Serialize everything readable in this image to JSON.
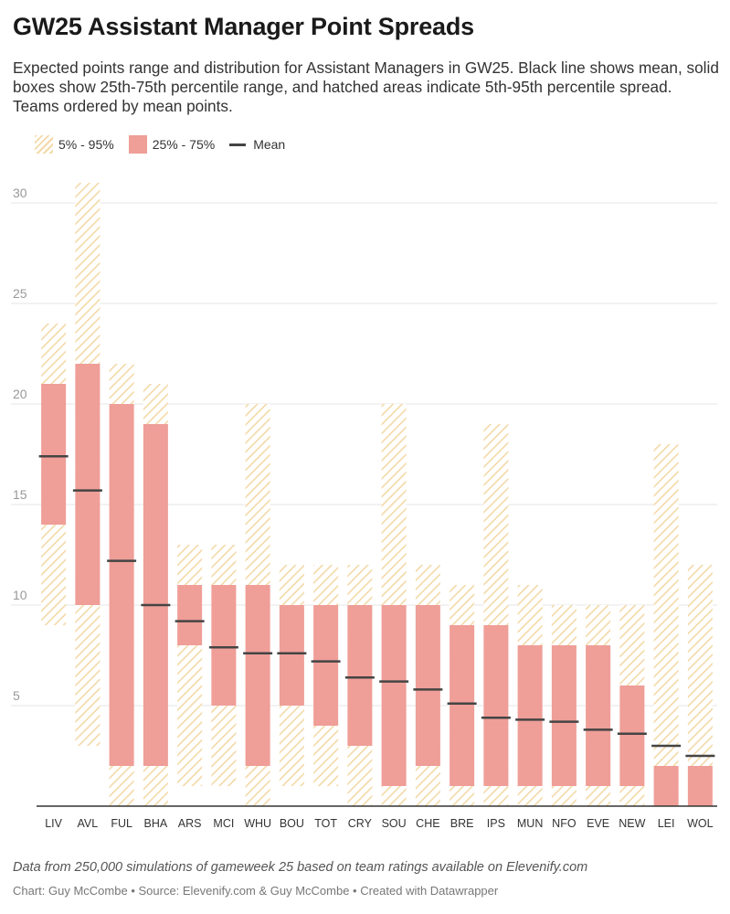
{
  "chart_data": {
    "type": "bar",
    "title": "GW25 Assistant Manager Point Spreads",
    "subtitle": "Expected points range and distribution for Assistant Managers in GW25. Black line shows mean, solid boxes show 25th-75th percentile range, and hatched areas indicate 5th-95th percentile spread. Teams ordered by mean points.",
    "legend": [
      {
        "label": "5% - 95%",
        "style": "hatched"
      },
      {
        "label": "25% - 75%",
        "style": "solid"
      },
      {
        "label": "Mean",
        "style": "line"
      }
    ],
    "categories": [
      "LIV",
      "AVL",
      "FUL",
      "BHA",
      "ARS",
      "MCI",
      "WHU",
      "BOU",
      "TOT",
      "CRY",
      "SOU",
      "CHE",
      "BRE",
      "IPS",
      "MUN",
      "NFO",
      "EVE",
      "NEW",
      "LEI",
      "WOL"
    ],
    "series": [
      {
        "name": "5%",
        "values": [
          9,
          3,
          0,
          0,
          1,
          1,
          0,
          1,
          1,
          0,
          0,
          0,
          0,
          0,
          0,
          0,
          0,
          0,
          0,
          0
        ]
      },
      {
        "name": "95%",
        "values": [
          24,
          31,
          22,
          21,
          13,
          13,
          20,
          12,
          12,
          12,
          20,
          12,
          11,
          19,
          11,
          10,
          10,
          10,
          18,
          12
        ]
      },
      {
        "name": "25%",
        "values": [
          14,
          10,
          2,
          2,
          8,
          5,
          2,
          5,
          4,
          3,
          1,
          2,
          1,
          1,
          1,
          1,
          1,
          1,
          0,
          0
        ]
      },
      {
        "name": "75%",
        "values": [
          21,
          22,
          20,
          19,
          11,
          11,
          11,
          10,
          10,
          10,
          10,
          10,
          9,
          9,
          8,
          8,
          8,
          6,
          2,
          2
        ]
      },
      {
        "name": "Mean",
        "values": [
          17.4,
          15.7,
          12.2,
          10.0,
          9.2,
          7.9,
          7.6,
          7.6,
          7.2,
          6.4,
          6.2,
          5.8,
          5.1,
          4.4,
          4.3,
          4.2,
          3.8,
          3.6,
          3.0,
          2.5
        ]
      }
    ],
    "ylim": [
      0,
      31
    ],
    "yticks": [
      5,
      10,
      15,
      20,
      25,
      30
    ],
    "grid": true,
    "colors": {
      "iqr": "#ef9e98",
      "hatch": "#f3d9a8",
      "mean": "#444444",
      "grid": "#e6e6e6",
      "axis": "#333333"
    },
    "notes": "Data from 250,000 simulations of gameweek 25 based on team ratings available on Elevenify.com",
    "credits": "Chart: Guy McCombe • Source: Elevenify.com & Guy McCombe • Created with Datawrapper"
  }
}
